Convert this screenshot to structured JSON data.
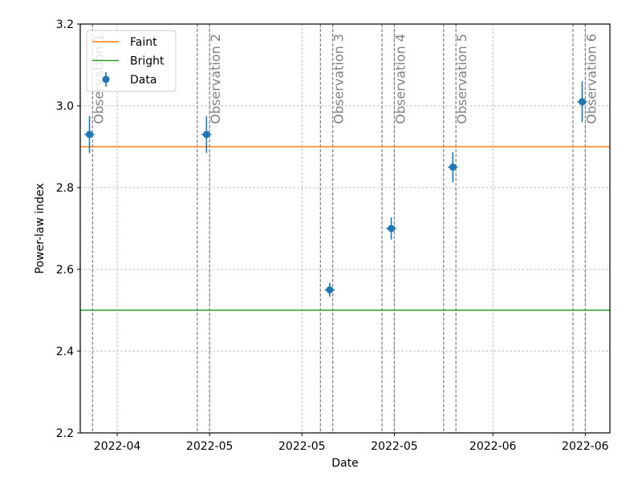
{
  "chart_data": {
    "type": "scatter",
    "xlabel": "Date",
    "ylabel": "Power-law index",
    "ylim": [
      2.2,
      3.2
    ],
    "xlim": [
      "2022-03-26",
      "2022-06-20"
    ],
    "yticks": [
      2.2,
      2.4,
      2.6,
      2.8,
      3.0,
      3.2
    ],
    "ytick_labels": [
      "2.2",
      "2.4",
      "2.6",
      "2.8",
      "3.0",
      "3.2"
    ],
    "xticks": [
      "2022-04-01",
      "2022-04-16",
      "2022-05-01",
      "2022-05-16",
      "2022-06-01",
      "2022-06-16"
    ],
    "xtick_labels": [
      "2022-04",
      "2022-05",
      "2022-05",
      "2022-05",
      "2022-06",
      "2022-06"
    ],
    "grid": true,
    "legend_position": "top-left",
    "legend": [
      "Faint",
      "Bright",
      "Data"
    ],
    "hlines": [
      {
        "name": "Faint",
        "y": 2.9,
        "color": "#ff7f0e"
      },
      {
        "name": "Bright",
        "y": 2.5,
        "color": "#2ca02c"
      }
    ],
    "series": [
      {
        "name": "Data",
        "color": "#1f77b4",
        "x": [
          "2022-03-27",
          "2022-04-15",
          "2022-05-05",
          "2022-05-15",
          "2022-05-25",
          "2022-06-15"
        ],
        "y": [
          2.93,
          2.93,
          2.55,
          2.7,
          2.85,
          3.01
        ],
        "yerr": [
          0.045,
          0.045,
          0.017,
          0.027,
          0.037,
          0.05
        ],
        "xerr_days": [
          0.8,
          0.8,
          0.8,
          0.8,
          0.8,
          0.8
        ]
      }
    ],
    "observations": [
      {
        "label": "Observation 1",
        "start": "2022-03-26",
        "end": "2022-03-28"
      },
      {
        "label": "Observation 2",
        "start": "2022-04-14",
        "end": "2022-04-16"
      },
      {
        "label": "Observation 3",
        "start": "2022-05-04",
        "end": "2022-05-06"
      },
      {
        "label": "Observation 4",
        "start": "2022-05-14",
        "end": "2022-05-16"
      },
      {
        "label": "Observation 5",
        "start": "2022-05-24",
        "end": "2022-05-26"
      },
      {
        "label": "Observation 6",
        "start": "2022-06-14",
        "end": "2022-06-16"
      }
    ],
    "colors": {
      "axes": "#000000",
      "grid": "#b0b0b0",
      "vline": "#808080",
      "obs_label": "#808080"
    }
  }
}
